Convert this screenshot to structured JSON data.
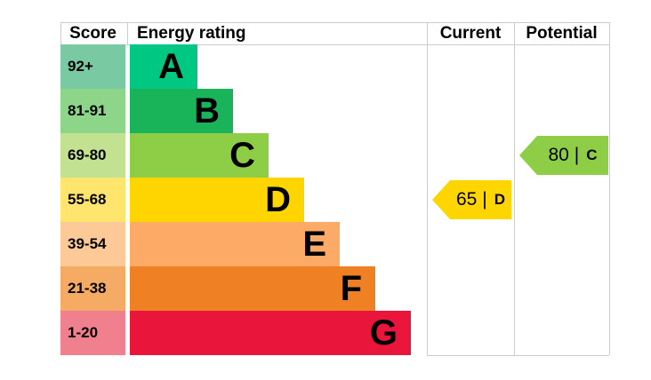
{
  "header": {
    "score": "Score",
    "energy_rating": "Energy rating",
    "current": "Current",
    "potential": "Potential"
  },
  "colors": {
    "border": "#cccccc",
    "text": "#000000",
    "background": "#ffffff"
  },
  "chart_data": {
    "type": "bar",
    "title": "Energy rating",
    "description": "EPC energy efficiency rating chart with score bands A-G, current rating 65 (band D), potential rating 80 (band C)",
    "bands": [
      {
        "letter": "A",
        "score_range": "92+",
        "bar_color": "#00c781",
        "score_color": "#79c9a2"
      },
      {
        "letter": "B",
        "score_range": "81-91",
        "bar_color": "#19b459",
        "score_color": "#8dd689"
      },
      {
        "letter": "C",
        "score_range": "69-80",
        "bar_color": "#8dce46",
        "score_color": "#c2e191"
      },
      {
        "letter": "D",
        "score_range": "55-68",
        "bar_color": "#ffd500",
        "score_color": "#ffe46e"
      },
      {
        "letter": "E",
        "score_range": "39-54",
        "bar_color": "#fcaa65",
        "score_color": "#fdc997"
      },
      {
        "letter": "F",
        "score_range": "21-38",
        "bar_color": "#ef8023",
        "score_color": "#f5ab64"
      },
      {
        "letter": "G",
        "score_range": "1-20",
        "bar_color": "#e9153b",
        "score_color": "#f1808f"
      }
    ],
    "markers": {
      "current": {
        "value": "65",
        "separator": "|",
        "band": "D",
        "color": "#ffd500",
        "row_index": 3
      },
      "potential": {
        "value": "80",
        "separator": "|",
        "band": "C",
        "color": "#8dce46",
        "row_index": 2
      }
    }
  }
}
